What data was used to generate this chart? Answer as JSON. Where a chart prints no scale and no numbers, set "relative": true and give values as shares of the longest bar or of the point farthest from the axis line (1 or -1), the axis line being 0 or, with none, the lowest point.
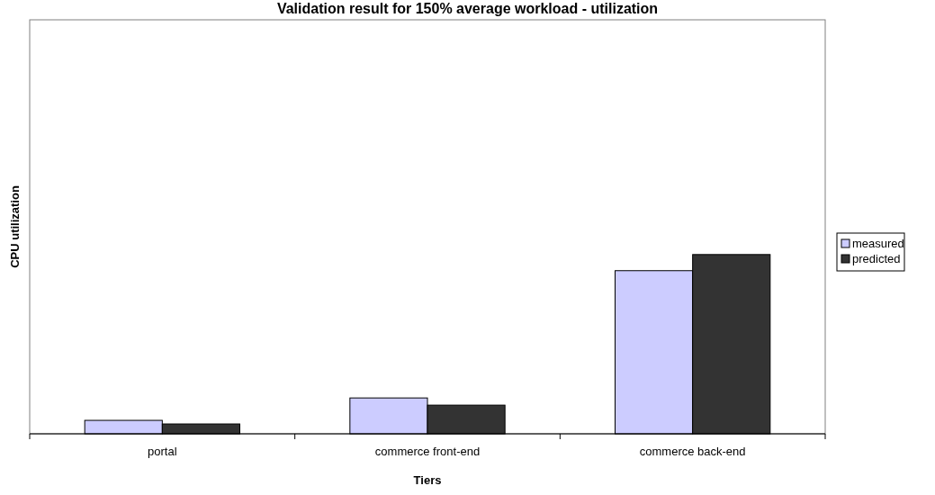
{
  "chart_data": {
    "type": "bar",
    "title": "Validation result for 150% average workload - utilization",
    "xlabel": "Tiers",
    "ylabel": "CPU utilization",
    "categories": [
      "portal",
      "commerce front-end",
      "commerce back-end"
    ],
    "relative": true,
    "legend": "right",
    "series": [
      {
        "name": "measured",
        "color": "#ccccff",
        "values": [
          0.075,
          0.2,
          0.91
        ]
      },
      {
        "name": "predicted",
        "color": "#333333",
        "values": [
          0.055,
          0.16,
          1
        ]
      }
    ]
  }
}
